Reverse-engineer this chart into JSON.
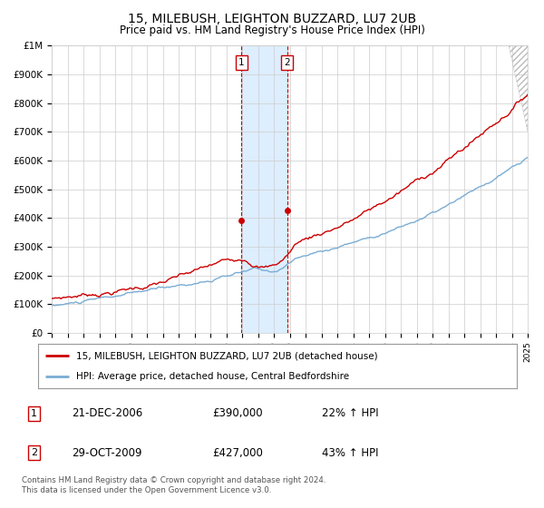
{
  "title": "15, MILEBUSH, LEIGHTON BUZZARD, LU7 2UB",
  "subtitle": "Price paid vs. HM Land Registry's House Price Index (HPI)",
  "legend_line1": "15, MILEBUSH, LEIGHTON BUZZARD, LU7 2UB (detached house)",
  "legend_line2": "HPI: Average price, detached house, Central Bedfordshire",
  "transaction1_date": "21-DEC-2006",
  "transaction1_price": 390000,
  "transaction1_hpi": "22% ↑ HPI",
  "transaction2_date": "29-OCT-2009",
  "transaction2_price": 427000,
  "transaction2_hpi": "43% ↑ HPI",
  "footer": "Contains HM Land Registry data © Crown copyright and database right 2024.\nThis data is licensed under the Open Government Licence v3.0.",
  "red_color": "#cc0000",
  "blue_color": "#7aadd4",
  "highlight_color": "#ddeeff",
  "grid_color": "#cccccc",
  "background_color": "#ffffff",
  "x_start_year": 1995,
  "x_end_year": 2025,
  "y_min": 0,
  "y_max": 1000000,
  "transaction1_year": 2006.97,
  "transaction2_year": 2009.83
}
